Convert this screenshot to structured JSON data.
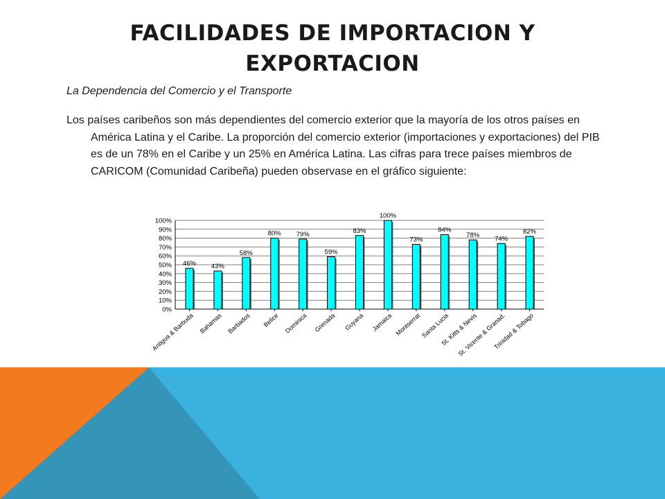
{
  "slide": {
    "title": "FACILIDADES DE IMPORTACION Y EXPORTACION",
    "subtitle": "La Dependencia del Comercio y el Transporte",
    "paragraph": "Los países caribeños son más dependientes del comercio exterior que la mayoría de los otros países en América Latina y el Caribe. La proporción del comercio exterior (importaciones y exportaciones) del PIB es de un 78% en el Caribe y un 25% en América Latina. Las cifras para trece países miembros de CARICOM (Comunidad Caribeña) pueden observase en el gráfico siguiente:"
  },
  "colors": {
    "bar_fill": "#00ffff",
    "bar_stroke": "#000000",
    "band_blue": "#3bb1e0",
    "band_orange": "#f47a20",
    "band_shadow": "#3595b8"
  },
  "chart_data": {
    "type": "bar",
    "title": "",
    "xlabel": "",
    "ylabel": "",
    "ylim": [
      0,
      100
    ],
    "yticks": [
      "0%",
      "10%",
      "20%",
      "30%",
      "40%",
      "50%",
      "60%",
      "70%",
      "80%",
      "90%",
      "100%"
    ],
    "grid": true,
    "categories": [
      "Antigua & Barbuda",
      "Bahamas",
      "Barbados",
      "Belice",
      "Dominica",
      "Grenada",
      "Guyana",
      "Jamaica",
      "Montserrat",
      "Santa Lucia",
      "St. Kitts & Nevis",
      "St. Vicente & Granad.",
      "Trinidad & Tobago"
    ],
    "values": [
      46,
      43,
      58,
      80,
      79,
      59,
      83,
      100,
      73,
      84,
      78,
      74,
      82
    ],
    "value_labels": [
      "46%",
      "43%",
      "58%",
      "80%",
      "79%",
      "59%",
      "83%",
      "100%",
      "73%",
      "84%",
      "78%",
      "74%",
      "82%"
    ]
  }
}
